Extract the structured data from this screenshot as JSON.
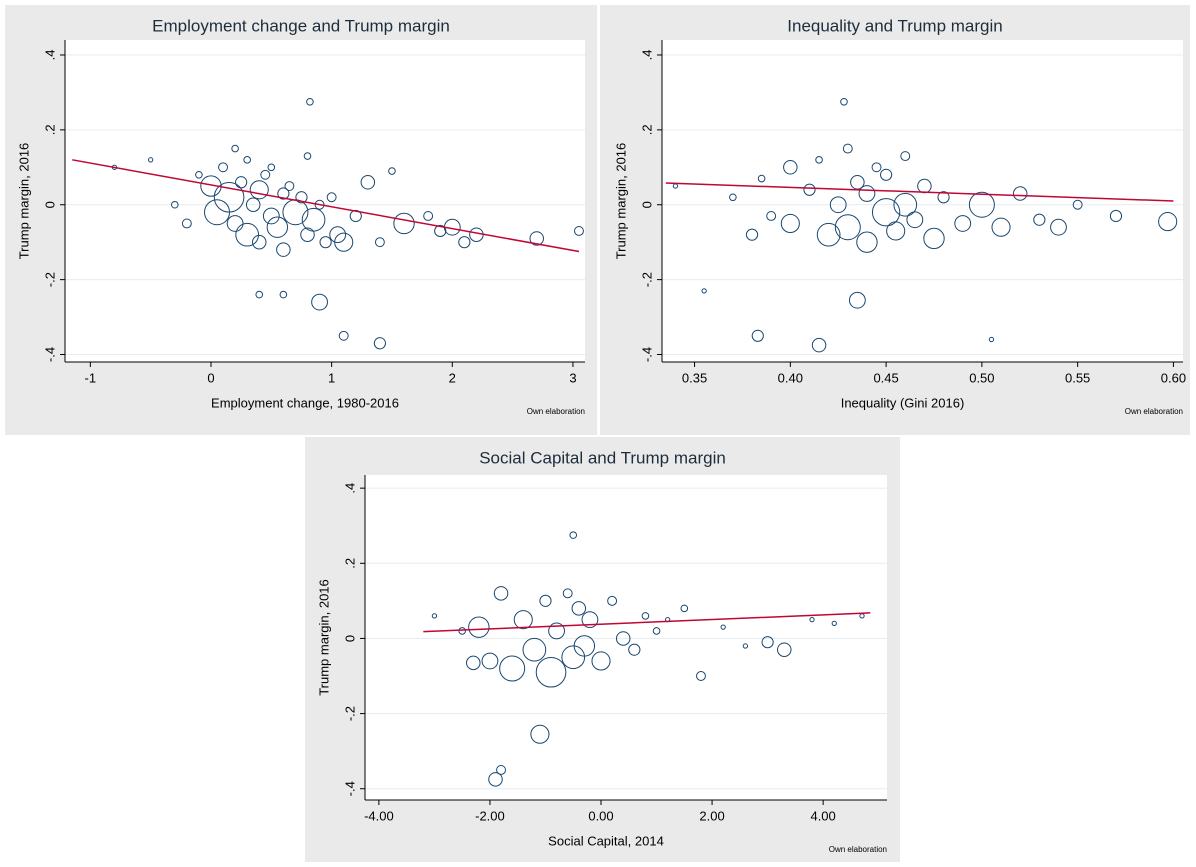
{
  "chart_data": [
    {
      "type": "scatter",
      "title": "Employment change and Trump margin",
      "x_label": "Employment change, 1980-2016",
      "y_label": "Trump margin, 2016",
      "note": "Own elaboration",
      "color": "#1a476f",
      "grid": true,
      "xlim": [
        -1.21,
        3.1
      ],
      "ylim": [
        -0.42,
        0.44
      ],
      "xticks": [
        -1,
        0,
        1,
        2,
        3
      ],
      "yticks": [
        {
          "value": 0.4,
          "label": ".4"
        },
        {
          "value": 0.2,
          "label": ".2"
        },
        0,
        {
          "value": -0.2,
          "label": "-.2"
        },
        {
          "value": -0.4,
          "label": "-.4"
        }
      ],
      "x": [
        -0.8,
        -0.5,
        -0.3,
        -0.2,
        -0.1,
        0,
        0.05,
        0.1,
        0.15,
        0.2,
        0.2,
        0.25,
        0.3,
        0.3,
        0.35,
        0.4,
        0.4,
        0.45,
        0.5,
        0.5,
        0.55,
        0.6,
        0.6,
        0.65,
        0.7,
        0.75,
        0.8,
        0.8,
        0.85,
        0.9,
        0.95,
        1.0,
        1.05,
        1.1,
        1.2,
        1.3,
        1.4,
        1.5,
        1.6,
        1.8,
        1.9,
        2.0,
        2.1,
        2.2,
        2.7,
        3.05,
        0.4,
        0.6,
        0.9,
        1.1,
        1.4,
        0.82
      ],
      "y": [
        0.1,
        0.12,
        0.0,
        -0.05,
        0.08,
        0.05,
        -0.02,
        0.1,
        0.02,
        0.15,
        -0.05,
        0.06,
        -0.08,
        0.12,
        0.0,
        0.04,
        -0.1,
        0.08,
        -0.03,
        0.1,
        -0.06,
        0.03,
        -0.12,
        0.05,
        -0.02,
        0.02,
        -0.08,
        0.13,
        -0.04,
        0.0,
        -0.1,
        0.02,
        -0.08,
        -0.1,
        -0.03,
        0.06,
        -0.1,
        0.09,
        -0.05,
        -0.03,
        -0.07,
        -0.06,
        -0.1,
        -0.08,
        -0.09,
        -0.07,
        -0.24,
        -0.24,
        -0.26,
        -0.35,
        -0.37,
        0.275
      ],
      "sizes": [
        1,
        1,
        2,
        3,
        2,
        8,
        10,
        3,
        12,
        2,
        6,
        4,
        9,
        2,
        5,
        7,
        5,
        3,
        6,
        2,
        8,
        4,
        5,
        3,
        10,
        4,
        5,
        2,
        9,
        3,
        4,
        3,
        6,
        7,
        4,
        5,
        3,
        2,
        8,
        3,
        4,
        6,
        4,
        5,
        5,
        3,
        2,
        2,
        6,
        3,
        4,
        2
      ],
      "fit": {
        "color": "#c10534",
        "x": [
          -1.15,
          3.05
        ],
        "y": [
          0.12,
          -0.125
        ]
      }
    },
    {
      "type": "scatter",
      "title": "Inequality and Trump margin",
      "x_label": "Inequality (Gini 2016)",
      "y_label": "Trump margin, 2016",
      "note": "Own elaboration",
      "color": "#1a476f",
      "grid": true,
      "xlim": [
        0.333,
        0.605
      ],
      "ylim": [
        -0.42,
        0.44
      ],
      "xticks": [
        0.35,
        {
          "value": 0.4,
          "label": "0.40"
        },
        0.45,
        {
          "value": 0.5,
          "label": "0.50"
        },
        0.55,
        {
          "value": 0.6,
          "label": "0.60"
        }
      ],
      "yticks": [
        {
          "value": 0.4,
          "label": ".4"
        },
        {
          "value": 0.2,
          "label": ".2"
        },
        0,
        {
          "value": -0.2,
          "label": "-.2"
        },
        {
          "value": -0.4,
          "label": "-.4"
        }
      ],
      "x": [
        0.34,
        0.355,
        0.37,
        0.38,
        0.385,
        0.39,
        0.4,
        0.4,
        0.41,
        0.415,
        0.42,
        0.425,
        0.43,
        0.43,
        0.435,
        0.44,
        0.44,
        0.445,
        0.45,
        0.45,
        0.455,
        0.46,
        0.46,
        0.465,
        0.47,
        0.475,
        0.48,
        0.49,
        0.5,
        0.505,
        0.51,
        0.52,
        0.53,
        0.54,
        0.55,
        0.57,
        0.597,
        0.415,
        0.435,
        0.383,
        0.428
      ],
      "y": [
        0.05,
        -0.23,
        0.02,
        -0.08,
        0.07,
        -0.03,
        0.1,
        -0.05,
        0.04,
        0.12,
        -0.08,
        0.0,
        0.15,
        -0.06,
        0.06,
        -0.1,
        0.03,
        0.1,
        -0.02,
        0.08,
        -0.07,
        0.0,
        0.13,
        -0.04,
        0.05,
        -0.09,
        0.02,
        -0.05,
        0.0,
        -0.36,
        -0.06,
        0.03,
        -0.04,
        -0.06,
        0.0,
        -0.03,
        -0.045,
        -0.375,
        -0.255,
        -0.35,
        0.275
      ],
      "sizes": [
        1,
        1,
        2,
        4,
        2,
        3,
        5,
        7,
        4,
        2,
        9,
        6,
        3,
        10,
        5,
        8,
        6,
        3,
        11,
        4,
        7,
        9,
        3,
        6,
        5,
        8,
        4,
        6,
        10,
        1,
        7,
        5,
        4,
        6,
        3,
        4,
        7,
        5,
        6,
        4,
        2
      ],
      "fit": {
        "color": "#c10534",
        "x": [
          0.335,
          0.6
        ],
        "y": [
          0.058,
          0.01
        ]
      }
    },
    {
      "type": "scatter",
      "title": "Social Capital and Trump margin",
      "x_label": "Social Capital, 2014",
      "y_label": "Trump margin, 2016",
      "note": "Own elaboration",
      "color": "#1a476f",
      "grid": true,
      "xlim": [
        -4.25,
        5.15
      ],
      "ylim": [
        -0.43,
        0.435
      ],
      "xticks": [
        {
          "value": -4,
          "label": "-4.00"
        },
        {
          "value": -2,
          "label": "-2.00"
        },
        {
          "value": 0,
          "label": "0.00"
        },
        {
          "value": 2,
          "label": "2.00"
        },
        {
          "value": 4,
          "label": "4.00"
        }
      ],
      "yticks": [
        {
          "value": 0.4,
          "label": ".4"
        },
        {
          "value": 0.2,
          "label": ".2"
        },
        0,
        {
          "value": -0.2,
          "label": "-.2"
        },
        {
          "value": -0.4,
          "label": "-.4"
        }
      ],
      "x": [
        -3.0,
        -2.5,
        -2.2,
        -2.0,
        -1.8,
        -1.6,
        -1.4,
        -1.2,
        -1.0,
        -0.9,
        -0.8,
        -0.6,
        -0.5,
        -0.4,
        -0.3,
        -0.2,
        0,
        0.2,
        0.4,
        0.6,
        0.8,
        1.0,
        1.2,
        1.5,
        1.8,
        2.2,
        2.6,
        3.0,
        3.3,
        3.8,
        4.2,
        4.7,
        -2.3,
        -1.8,
        -1.1,
        -1.9,
        -0.5
      ],
      "y": [
        0.06,
        0.02,
        0.03,
        -0.06,
        0.12,
        -0.08,
        0.05,
        -0.03,
        0.1,
        -0.09,
        0.02,
        0.12,
        -0.05,
        0.08,
        -0.02,
        0.05,
        -0.06,
        0.1,
        0.0,
        -0.03,
        0.06,
        0.02,
        0.05,
        0.08,
        -0.1,
        0.03,
        -0.02,
        -0.01,
        -0.03,
        0.05,
        0.04,
        0.06,
        -0.065,
        -0.35,
        -0.255,
        -0.375,
        0.275
      ],
      "sizes": [
        1,
        2,
        8,
        6,
        5,
        10,
        7,
        9,
        4,
        12,
        6,
        3,
        9,
        5,
        8,
        6,
        7,
        3,
        5,
        4,
        2,
        2,
        1,
        2,
        3,
        1,
        1,
        4,
        5,
        1,
        1,
        1,
        5,
        3,
        7,
        5,
        2
      ],
      "fit": {
        "color": "#c10534",
        "x": [
          -3.2,
          4.85
        ],
        "y": [
          0.018,
          0.068
        ]
      }
    }
  ]
}
